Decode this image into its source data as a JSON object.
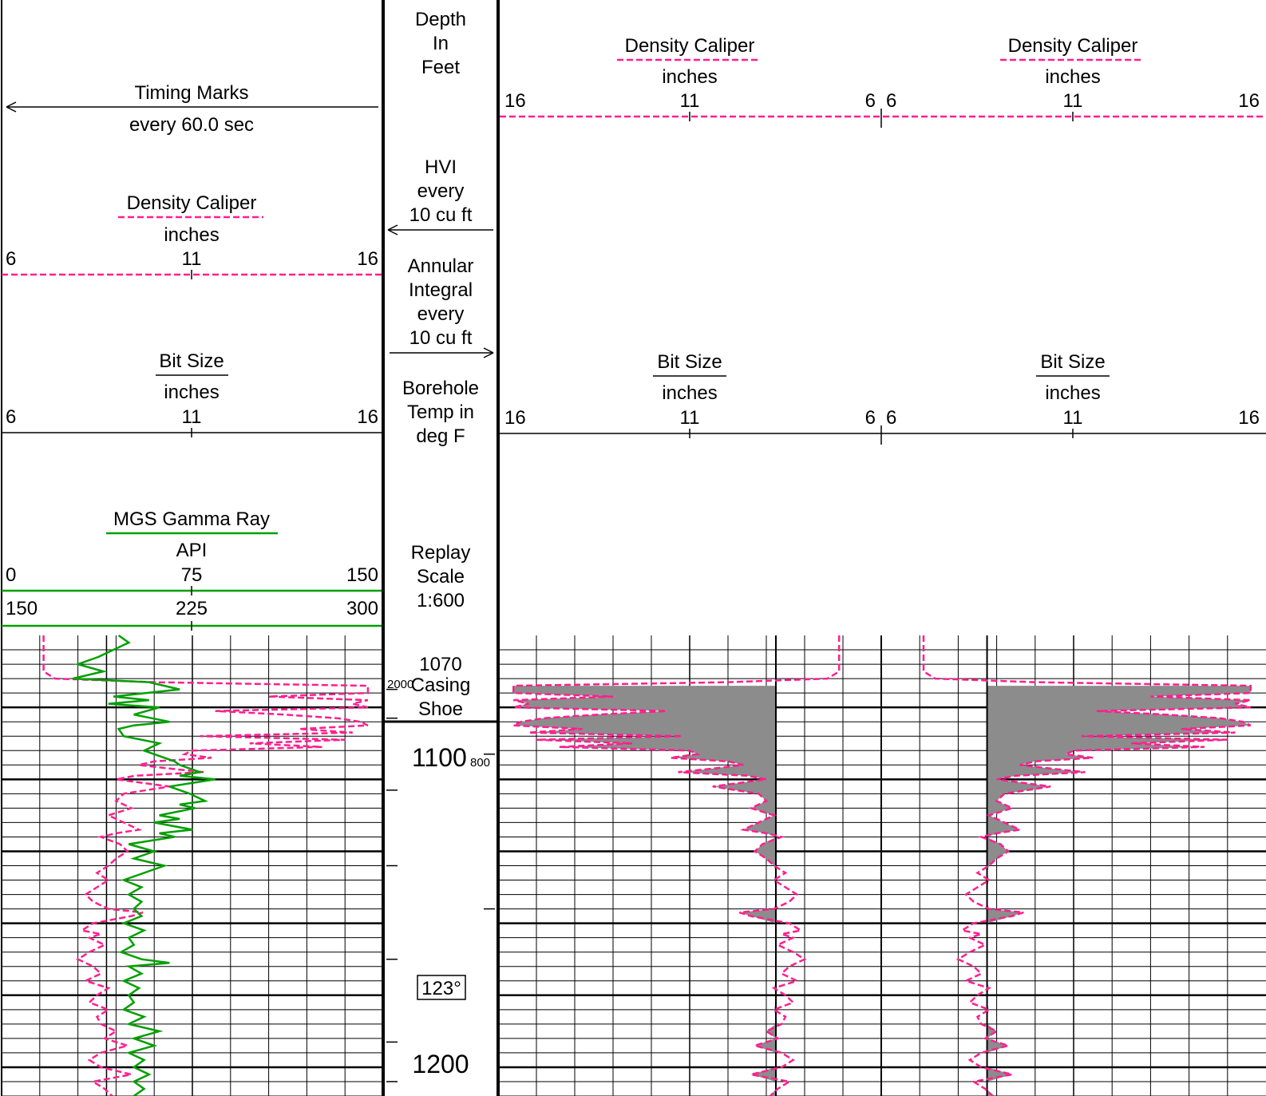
{
  "colors": {
    "caliper": "#ff1f8f",
    "gamma": "#00a000",
    "bit": "#000000",
    "fill": "#8c8c8c",
    "grid": "#000000"
  },
  "track1": {
    "timing": {
      "title": "Timing Marks",
      "subtitle": "every 60.0 sec"
    },
    "caliper": {
      "title": "Density Caliper",
      "unit": "inches",
      "scale": [
        "6",
        "11",
        "16"
      ]
    },
    "bit": {
      "title": "Bit Size",
      "unit": "inches",
      "scale": [
        "6",
        "11",
        "16"
      ]
    },
    "gamma": {
      "title": "MGS Gamma Ray",
      "unit": "API",
      "scale": [
        "0",
        "75",
        "150"
      ],
      "scale_backup": [
        "150",
        "225",
        "300"
      ]
    }
  },
  "depth_track": {
    "title": [
      "Depth",
      "In",
      "Feet"
    ],
    "hvi": [
      "HVI",
      "every",
      "10 cu ft"
    ],
    "annular": [
      "Annular",
      "Integral",
      "every",
      "10 cu ft"
    ],
    "temp": [
      "Borehole",
      "Temp in",
      "deg F"
    ],
    "replay": [
      "Replay",
      "Scale",
      "1:600"
    ],
    "casing": [
      "1070",
      "Casing",
      "Shoe"
    ],
    "depth_labels": [
      "1100",
      "1200"
    ],
    "hvi_marker": "2000",
    "annular_marker": "800",
    "temp_box": "123°"
  },
  "track23": {
    "left": {
      "caliper_title": "Density Caliper",
      "caliper_unit": "inches",
      "caliper_scale": [
        "16",
        "11",
        "6"
      ],
      "bit_title": "Bit Size",
      "bit_unit": "inches",
      "bit_scale": [
        "16",
        "11",
        "6"
      ]
    },
    "right": {
      "caliper_title": "Density Caliper",
      "caliper_unit": "inches",
      "caliper_scale": [
        "6",
        "11",
        "16"
      ],
      "bit_title": "Bit Size",
      "bit_unit": "inches",
      "bit_scale": [
        "6",
        "11",
        "16"
      ]
    }
  },
  "chart_data": {
    "type": "line",
    "depth_range_ft": [
      1080,
      1208
    ],
    "casing_shoe_ft": 1070,
    "bit_size_in": 8.75,
    "series": [
      {
        "name": "Density Caliper",
        "unit": "inches",
        "x_range": [
          6,
          16
        ],
        "points": [
          [
            1080,
            7.1
          ],
          [
            1083,
            7.1
          ],
          [
            1086,
            7.1
          ],
          [
            1090,
            7.1
          ],
          [
            1092,
            7.4
          ],
          [
            1093,
            10.0
          ],
          [
            1094,
            15.6
          ],
          [
            1096,
            15.6
          ],
          [
            1097,
            13.0
          ],
          [
            1098,
            15.6
          ],
          [
            1099,
            15.2
          ],
          [
            1100,
            15.6
          ],
          [
            1101,
            11.6
          ],
          [
            1102,
            13.4
          ],
          [
            1103,
            14.8
          ],
          [
            1104,
            15.4
          ],
          [
            1105,
            15.6
          ],
          [
            1106,
            13.8
          ],
          [
            1107,
            15.2
          ],
          [
            1108,
            11.2
          ],
          [
            1109,
            15.0
          ],
          [
            1110,
            12.5
          ],
          [
            1111,
            14.4
          ],
          [
            1112,
            11.0
          ],
          [
            1113,
            10.8
          ],
          [
            1114,
            11.5
          ],
          [
            1115,
            10.0
          ],
          [
            1116,
            9.6
          ],
          [
            1117,
            10.4
          ],
          [
            1118,
            11.3
          ],
          [
            1119,
            9.5
          ],
          [
            1120,
            9.0
          ],
          [
            1122,
            10.4
          ],
          [
            1124,
            9.2
          ],
          [
            1126,
            9.0
          ],
          [
            1128,
            9.4
          ],
          [
            1130,
            8.8
          ],
          [
            1132,
            9.2
          ],
          [
            1134,
            9.6
          ],
          [
            1135,
            9.0
          ],
          [
            1136,
            8.6
          ],
          [
            1138,
            9.1
          ],
          [
            1140,
            9.3
          ],
          [
            1142,
            9.0
          ],
          [
            1144,
            8.8
          ],
          [
            1146,
            8.5
          ],
          [
            1148,
            8.8
          ],
          [
            1150,
            8.5
          ],
          [
            1152,
            8.2
          ],
          [
            1154,
            8.4
          ],
          [
            1156,
            8.8
          ],
          [
            1157,
            9.7
          ],
          [
            1158,
            9.4
          ],
          [
            1160,
            8.4
          ],
          [
            1162,
            8.1
          ],
          [
            1163,
            8.6
          ],
          [
            1164,
            8.3
          ],
          [
            1166,
            8.7
          ],
          [
            1168,
            8.3
          ],
          [
            1170,
            8.0
          ],
          [
            1172,
            8.4
          ],
          [
            1174,
            8.6
          ],
          [
            1176,
            8.2
          ],
          [
            1178,
            8.8
          ],
          [
            1180,
            8.5
          ],
          [
            1182,
            8.3
          ],
          [
            1184,
            8.8
          ],
          [
            1186,
            8.5
          ],
          [
            1188,
            8.6
          ],
          [
            1190,
            9.0
          ],
          [
            1192,
            8.7
          ],
          [
            1194,
            9.3
          ],
          [
            1196,
            8.6
          ],
          [
            1198,
            8.3
          ],
          [
            1200,
            8.6
          ],
          [
            1202,
            9.4
          ],
          [
            1204,
            8.4
          ],
          [
            1206,
            8.7
          ],
          [
            1208,
            8.9
          ]
        ]
      },
      {
        "name": "MGS Gamma Ray",
        "unit": "API",
        "x_range": [
          0,
          150
        ],
        "points": [
          [
            1080,
            46
          ],
          [
            1082,
            50
          ],
          [
            1084,
            44
          ],
          [
            1086,
            38
          ],
          [
            1088,
            30
          ],
          [
            1090,
            40
          ],
          [
            1092,
            28
          ],
          [
            1093,
            58
          ],
          [
            1095,
            70
          ],
          [
            1097,
            44
          ],
          [
            1098,
            58
          ],
          [
            1099,
            42
          ],
          [
            1100,
            62
          ],
          [
            1102,
            52
          ],
          [
            1104,
            66
          ],
          [
            1105,
            52
          ],
          [
            1106,
            46
          ],
          [
            1108,
            48
          ],
          [
            1110,
            62
          ],
          [
            1112,
            56
          ],
          [
            1113,
            60
          ],
          [
            1115,
            68
          ],
          [
            1116,
            70
          ],
          [
            1118,
            78
          ],
          [
            1119,
            70
          ],
          [
            1120,
            84
          ],
          [
            1122,
            66
          ],
          [
            1124,
            74
          ],
          [
            1126,
            80
          ],
          [
            1127,
            70
          ],
          [
            1128,
            76
          ],
          [
            1130,
            62
          ],
          [
            1131,
            70
          ],
          [
            1132,
            60
          ],
          [
            1134,
            75
          ],
          [
            1135,
            62
          ],
          [
            1136,
            68
          ],
          [
            1138,
            50
          ],
          [
            1140,
            60
          ],
          [
            1142,
            52
          ],
          [
            1144,
            64
          ],
          [
            1146,
            56
          ],
          [
            1148,
            48
          ],
          [
            1150,
            55
          ],
          [
            1152,
            50
          ],
          [
            1154,
            55
          ],
          [
            1156,
            52
          ],
          [
            1158,
            55
          ],
          [
            1160,
            48
          ],
          [
            1162,
            56
          ],
          [
            1164,
            50
          ],
          [
            1166,
            52
          ],
          [
            1168,
            47
          ],
          [
            1170,
            55
          ],
          [
            1171,
            66
          ],
          [
            1172,
            50
          ],
          [
            1174,
            55
          ],
          [
            1176,
            48
          ],
          [
            1178,
            54
          ],
          [
            1180,
            50
          ],
          [
            1182,
            52
          ],
          [
            1184,
            48
          ],
          [
            1186,
            56
          ],
          [
            1188,
            50
          ],
          [
            1190,
            62
          ],
          [
            1192,
            52
          ],
          [
            1194,
            60
          ],
          [
            1196,
            50
          ],
          [
            1198,
            56
          ],
          [
            1200,
            52
          ],
          [
            1202,
            58
          ],
          [
            1204,
            52
          ],
          [
            1206,
            56
          ],
          [
            1208,
            52
          ]
        ]
      }
    ]
  }
}
